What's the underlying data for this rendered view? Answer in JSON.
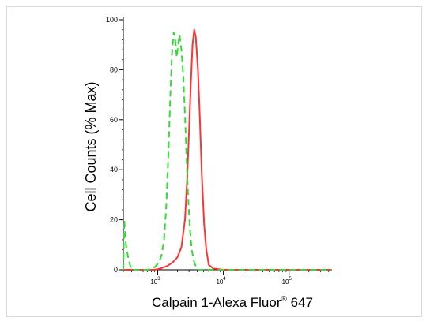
{
  "chart_data": {
    "type": "line",
    "title": "",
    "xlabel": "Calpain 1-Alexa Fluor",
    "xlabel_symbol": "®",
    "xlabel_suffix": " 647",
    "ylabel": "Cell Counts (% Max)",
    "x_scale": "log",
    "xlim": [
      300,
      450000
    ],
    "ylim": [
      0,
      100
    ],
    "y_ticks": [
      0,
      20,
      40,
      60,
      80,
      100
    ],
    "y_tick_labels": [
      "0",
      "20",
      "40",
      "60",
      "80",
      "100"
    ],
    "x_major_ticks": [
      1000,
      10000,
      100000
    ],
    "x_tick_labels": [
      {
        "base": "10",
        "exp": "3"
      },
      {
        "base": "10",
        "exp": "4"
      },
      {
        "base": "10",
        "exp": "5"
      }
    ],
    "grid": false,
    "series": [
      {
        "color": "#ff3333",
        "dash": false,
        "x": [
          300,
          900,
          1100,
          1400,
          1700,
          2000,
          2300,
          2600,
          2800,
          3000,
          3200,
          3400,
          3600,
          3800,
          4100,
          4400,
          4700,
          5100,
          5500,
          6000,
          7000,
          10000,
          100000,
          450000
        ],
        "y": [
          0,
          0,
          0.5,
          1.5,
          3,
          5,
          9,
          20,
          35,
          55,
          75,
          90,
          96,
          93,
          80,
          60,
          38,
          18,
          8,
          2,
          0.5,
          0,
          0,
          0
        ]
      },
      {
        "color": "#33dd33",
        "dash": true,
        "x": [
          300,
          310,
          330,
          360,
          400,
          700,
          900,
          1050,
          1150,
          1250,
          1350,
          1450,
          1550,
          1650,
          1750,
          1850,
          1950,
          2050,
          2150,
          2300,
          2450,
          2600,
          2750,
          2900,
          3100,
          3300,
          3600,
          4000,
          10000,
          450000
        ],
        "y": [
          0,
          20,
          10,
          4,
          0,
          0,
          1,
          3,
          6,
          12,
          25,
          45,
          68,
          86,
          95,
          92,
          85,
          90,
          94,
          88,
          78,
          62,
          45,
          30,
          16,
          8,
          3,
          0,
          0,
          0
        ]
      }
    ]
  }
}
